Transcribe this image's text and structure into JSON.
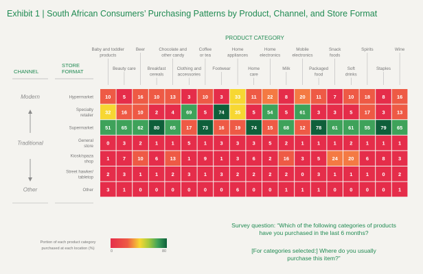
{
  "title": "Exhibit 1 | South African Consumers’ Purchasing Patterns by Product, Channel, and Store Format",
  "chart_data": {
    "type": "heatmap",
    "title": "Exhibit 1 | South African Consumers’ Purchasing Patterns by Product, Channel, and Store Format",
    "x_header": "PRODUCT CATEGORY",
    "channel_header": "CHANNEL",
    "store_format_header": [
      "STORE",
      "FORMAT"
    ],
    "channel_labels": [
      "Modern",
      "Traditional",
      "Other"
    ],
    "categories": [
      [
        "Baby and toddler",
        "products"
      ],
      [
        "Beauty care"
      ],
      [
        "Beer"
      ],
      [
        "Breakfast",
        "cereals"
      ],
      [
        "Chocolate and",
        "other candy"
      ],
      [
        "Clothing and",
        "accessories"
      ],
      [
        "Coffee",
        "or tea"
      ],
      [
        "Footwear"
      ],
      [
        "Home",
        "appliances"
      ],
      [
        "Home",
        "care"
      ],
      [
        "Home",
        "electronics"
      ],
      [
        "Milk"
      ],
      [
        "Mobile",
        "electronics"
      ],
      [
        "Packaged",
        "food"
      ],
      [
        "Snack",
        "foods"
      ],
      [
        "Soft",
        "drinks"
      ],
      [
        "Spirits"
      ],
      [
        "Staples"
      ],
      [
        "Wine"
      ]
    ],
    "rows": [
      {
        "name": [
          "Hypermarket"
        ],
        "values": [
          10,
          5,
          16,
          10,
          13,
          3,
          10,
          3,
          33,
          11,
          22,
          8,
          20,
          11,
          7,
          10,
          18,
          8,
          16
        ]
      },
      {
        "name": [
          "Specialty",
          "retailer"
        ],
        "values": [
          32,
          16,
          10,
          2,
          4,
          69,
          5,
          74,
          35,
          5,
          54,
          5,
          61,
          3,
          3,
          5,
          17,
          3,
          13
        ]
      },
      {
        "name": [
          "Supermarket"
        ],
        "values": [
          51,
          65,
          62,
          80,
          65,
          17,
          73,
          16,
          19,
          74,
          15,
          68,
          12,
          78,
          61,
          61,
          55,
          79,
          65
        ]
      },
      {
        "name": [
          "General",
          "store"
        ],
        "values": [
          0,
          3,
          2,
          1,
          1,
          5,
          1,
          3,
          3,
          3,
          5,
          2,
          1,
          1,
          1,
          2,
          1,
          1,
          1
        ]
      },
      {
        "name": [
          "Kiosk/spaza",
          "shop"
        ],
        "values": [
          1,
          7,
          10,
          6,
          13,
          1,
          9,
          1,
          3,
          6,
          2,
          16,
          3,
          5,
          24,
          20,
          6,
          8,
          3
        ]
      },
      {
        "name": [
          "Street hawker/",
          "tabletop"
        ],
        "values": [
          2,
          3,
          1,
          1,
          2,
          3,
          1,
          3,
          2,
          2,
          2,
          2,
          0,
          3,
          1,
          1,
          1,
          0,
          2
        ]
      },
      {
        "name": [
          "Other"
        ],
        "values": [
          3,
          1,
          0,
          0,
          0,
          0,
          0,
          0,
          6,
          0,
          0,
          1,
          1,
          1,
          0,
          0,
          0,
          0,
          1
        ]
      }
    ],
    "color_scale": {
      "min": 0,
      "max": 80,
      "min_label": "0",
      "max_label": "80"
    },
    "colors": {
      "low": "#e52d4a",
      "low_mid": "#ee5a45",
      "orange": "#f47a43",
      "yellow": "#f7d732",
      "green": "#3ea25a",
      "dark_green": "#0e5f3a",
      "title_green": "#1f8a52"
    }
  },
  "legend": {
    "label": [
      "Portion of each product category",
      "purchased at each location (%)"
    ]
  },
  "survey": {
    "question": [
      "Survey question: “Which of the following categories of products",
      "have you purchased in the last 6 months?"
    ],
    "followup": [
      "[For categories selected:] Where do you usually",
      "purchase this item?”"
    ]
  }
}
